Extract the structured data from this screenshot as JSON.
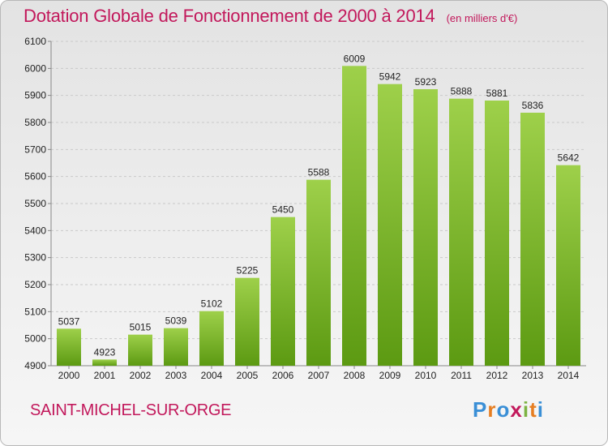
{
  "header": {
    "title": "Dotation Globale de Fonctionnement de 2000 à 2014",
    "unit": "(en milliers d'€)"
  },
  "footer": {
    "commune": "SAINT-MICHEL-SUR-ORGE",
    "logo_letters": [
      "P",
      "r",
      "o",
      "x",
      "i",
      "t",
      "i"
    ],
    "logo_colors": [
      "#3a8fd6",
      "#e67e22",
      "#3a8fd6",
      "#c2185b",
      "#7cb342",
      "#e67e22",
      "#3a8fd6"
    ]
  },
  "colors": {
    "bar_top": "#9ed04a",
    "bar_bottom": "#5c9a12",
    "accent": "#c2185b"
  },
  "chart_data": {
    "type": "bar",
    "title": "Dotation Globale de Fonctionnement de 2000 à 2014",
    "xlabel": "",
    "ylabel": "",
    "categories": [
      "2000",
      "2001",
      "2002",
      "2003",
      "2004",
      "2005",
      "2006",
      "2007",
      "2008",
      "2009",
      "2010",
      "2011",
      "2012",
      "2013",
      "2014"
    ],
    "values": [
      5037,
      4923,
      5015,
      5039,
      5102,
      5225,
      5450,
      5588,
      6009,
      5942,
      5923,
      5888,
      5881,
      5836,
      5642
    ],
    "ylim": [
      4900,
      6100
    ],
    "yticks": [
      4900,
      5000,
      5100,
      5200,
      5300,
      5400,
      5500,
      5600,
      5700,
      5800,
      5900,
      6000,
      6100
    ],
    "grid": true,
    "legend": "none"
  }
}
